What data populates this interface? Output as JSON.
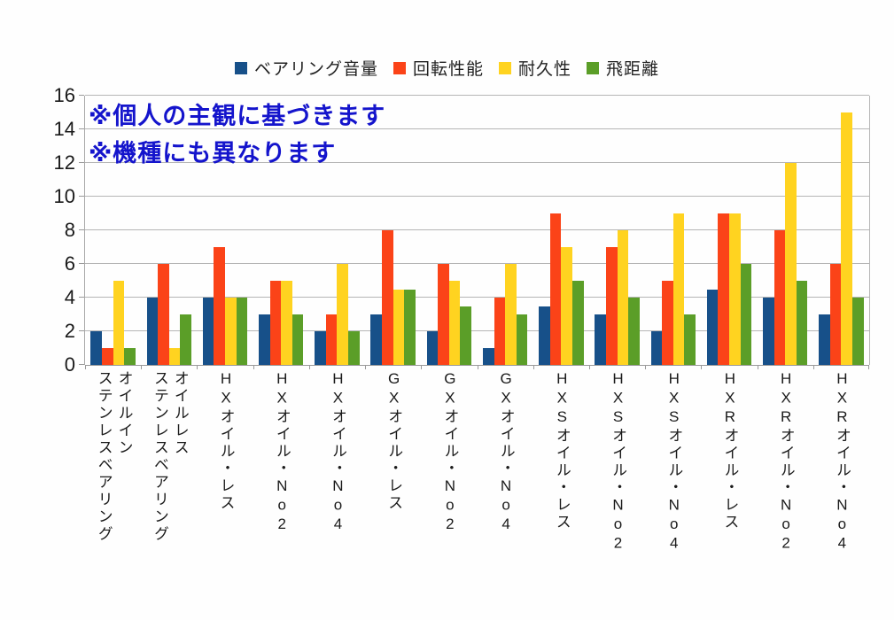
{
  "annotation": {
    "lines": [
      "※個人の主観に基づきます",
      "※機種にも異なります"
    ],
    "color": "#1414CC"
  },
  "colors": {
    "background": "#FEFEFE",
    "gridline": "#B5B5B5",
    "axis": "#9A9A9A",
    "text": "#1A1A1A"
  },
  "chart_data": {
    "type": "bar",
    "title": "",
    "xlabel": "",
    "ylabel": "",
    "ylim": [
      0,
      16
    ],
    "yticks": [
      0,
      2,
      4,
      6,
      8,
      10,
      12,
      14,
      16
    ],
    "grid": true,
    "legend_position": "top",
    "categories": [
      "オイルイン\nステンレスベアリング",
      "オイルレス\nステンレスベアリング",
      "HXオイル・レス",
      "HXオイル・No2",
      "HXオイル・No4",
      "GXオイル・レス",
      "GXオイル・No2",
      "GXオイル・No4",
      "HXSオイル・レス",
      "HXSオイル・No2",
      "HXSオイル・No4",
      "HXRオイル・レス",
      "HXRオイル・No2",
      "HXRオイル・No4"
    ],
    "series": [
      {
        "name": "ベアリング音量",
        "color": "#175089",
        "values": [
          2,
          4,
          4,
          3,
          2,
          3,
          2,
          1,
          3.5,
          3,
          2,
          4.5,
          4,
          3
        ]
      },
      {
        "name": "回転性能",
        "color": "#FB4318",
        "values": [
          1,
          6,
          7,
          5,
          3,
          8,
          6,
          4,
          9,
          7,
          5,
          9,
          8,
          6
        ]
      },
      {
        "name": "耐久性",
        "color": "#FFD320",
        "values": [
          5,
          1,
          4,
          5,
          6,
          4.5,
          5,
          6,
          7,
          8,
          9,
          9,
          12,
          15
        ]
      },
      {
        "name": "飛距離",
        "color": "#5B9E28",
        "values": [
          1,
          3,
          4,
          3,
          2,
          4.5,
          3.5,
          3,
          5,
          4,
          3,
          6,
          5,
          4
        ]
      }
    ]
  }
}
